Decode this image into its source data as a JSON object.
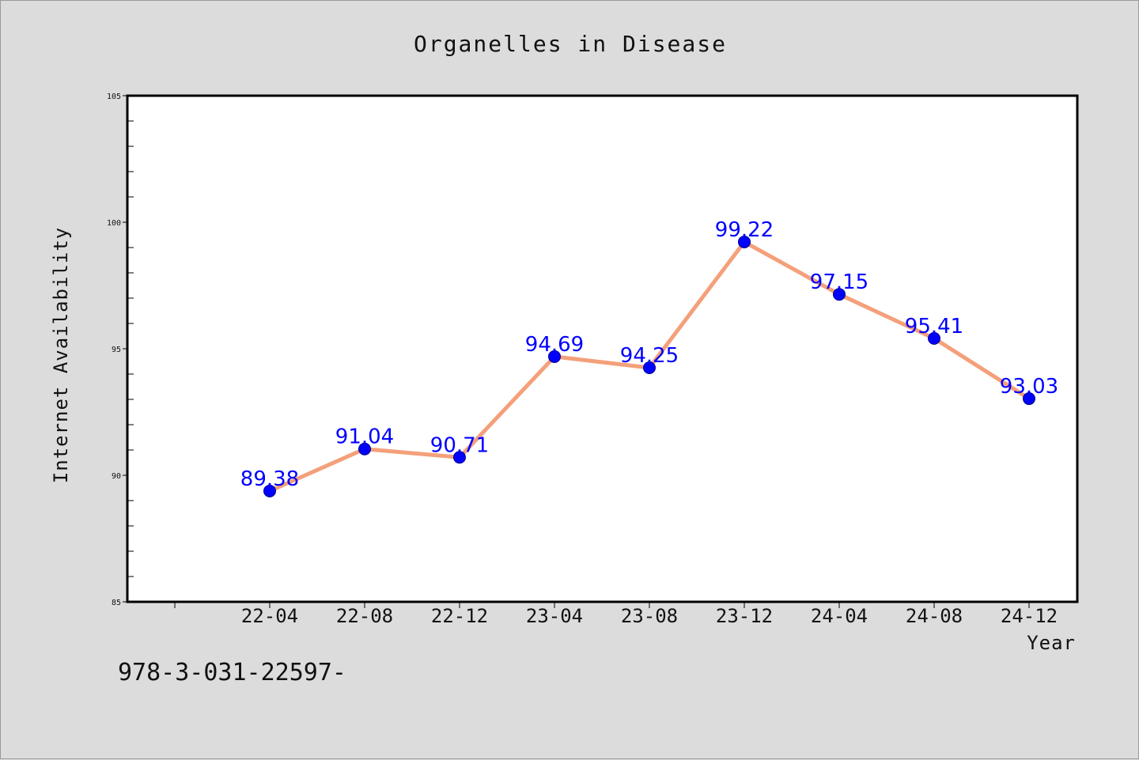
{
  "chart_data": {
    "type": "line",
    "title": "Organelles in Disease",
    "xlabel": "Year",
    "ylabel": "Internet Availability",
    "categories": [
      "22-04",
      "22-08",
      "22-12",
      "23-04",
      "23-08",
      "23-12",
      "24-04",
      "24-08",
      "24-12"
    ],
    "values": [
      89.38,
      91.04,
      90.71,
      94.69,
      94.25,
      99.22,
      97.15,
      95.41,
      93.03
    ],
    "data_labels": [
      "89.38",
      "91.04",
      "90.71",
      "94.69",
      "94.25",
      "99.22",
      "97.15",
      "95.41",
      "93.03"
    ],
    "ylim": [
      85,
      105
    ],
    "yticks": [
      85,
      90,
      95,
      100,
      105
    ],
    "grid": false,
    "legend": "none",
    "line_color": "#f4a07a",
    "marker_color": "#0000ff",
    "label_color": "#0000ff"
  },
  "footer": {
    "code": "978-3-031-22597-"
  }
}
